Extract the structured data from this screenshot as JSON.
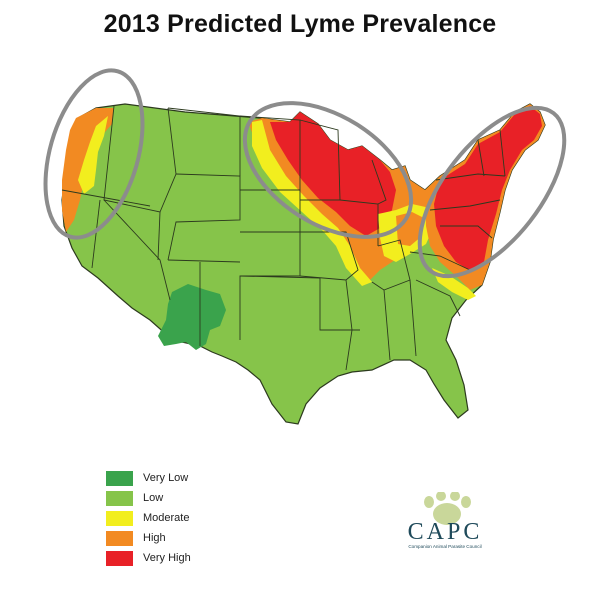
{
  "title": "2013 Predicted Lyme Prevalence",
  "colors": {
    "very_low": "#3aa34c",
    "low": "#86c44a",
    "moderate": "#f2ee1e",
    "high": "#f28a22",
    "very_high": "#e82127",
    "border": "#2c3a1e",
    "highlight_ellipse": "#8c8c8c"
  },
  "legend": {
    "items": [
      {
        "label": "Very Low",
        "color": "#3aa34c"
      },
      {
        "label": "Low",
        "color": "#86c44a"
      },
      {
        "label": "Moderate",
        "color": "#f2ee1e"
      },
      {
        "label": "High",
        "color": "#f28a22"
      },
      {
        "label": "Very High",
        "color": "#e82127"
      }
    ]
  },
  "logo": {
    "text": "CAPC",
    "tagline": "Companion Animal Parasite Council"
  },
  "highlighted_regions": [
    "Pacific Northwest",
    "Upper Midwest",
    "Northeast"
  ]
}
